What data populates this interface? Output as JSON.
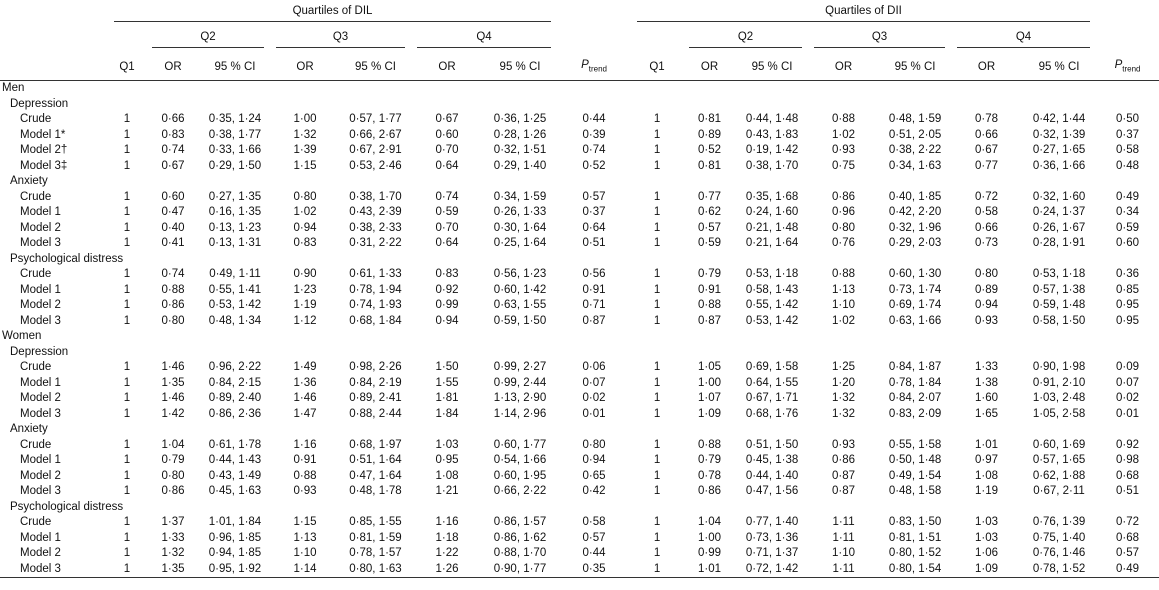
{
  "table": {
    "groups": [
      {
        "title": "Quartiles of DIL",
        "quartiles": [
          "Q2",
          "Q3",
          "Q4"
        ],
        "columns": [
          "Q1",
          "OR",
          "95 % CI",
          "OR",
          "95 % CI",
          "OR",
          "95 % CI"
        ],
        "p_symbol": "P",
        "p_subscript": "trend"
      },
      {
        "title": "Quartiles of DII",
        "quartiles": [
          "Q2",
          "Q3",
          "Q4"
        ],
        "columns": [
          "Q1",
          "OR",
          "95 % CI",
          "OR",
          "95 % CI",
          "OR",
          "95 % CI"
        ],
        "p_symbol": "P",
        "p_subscript": "trend"
      }
    ],
    "sections": [
      {
        "label": "Men",
        "subsections": [
          {
            "label": "Depression",
            "rows": [
              {
                "label": "Crude",
                "cells": [
                  "1",
                  "0·66",
                  "0·35, 1·24",
                  "1·00",
                  "0·57, 1·77",
                  "0·67",
                  "0·36, 1·25",
                  "0·44",
                  "1",
                  "0·81",
                  "0·44, 1·48",
                  "0·88",
                  "0·48, 1·59",
                  "0·78",
                  "0·42, 1·44",
                  "0·50"
                ]
              },
              {
                "label": "Model 1*",
                "cells": [
                  "1",
                  "0·83",
                  "0·38, 1·77",
                  "1·32",
                  "0·66, 2·67",
                  "0·60",
                  "0·28, 1·26",
                  "0·39",
                  "1",
                  "0·89",
                  "0·43, 1·83",
                  "1·02",
                  "0·51, 2·05",
                  "0·66",
                  "0·32, 1·39",
                  "0·37"
                ]
              },
              {
                "label": "Model 2†",
                "cells": [
                  "1",
                  "0·74",
                  "0·33, 1·66",
                  "1·39",
                  "0·67, 2·91",
                  "0·70",
                  "0·32, 1·51",
                  "0·74",
                  "1",
                  "0·52",
                  "0·19, 1·42",
                  "0·93",
                  "0·38, 2·22",
                  "0·67",
                  "0·27, 1·65",
                  "0·58"
                ]
              },
              {
                "label": "Model 3‡",
                "cells": [
                  "1",
                  "0·67",
                  "0·29, 1·50",
                  "1·15",
                  "0·53, 2·46",
                  "0·64",
                  "0·29, 1·40",
                  "0·52",
                  "1",
                  "0·81",
                  "0·38, 1·70",
                  "0·75",
                  "0·34, 1·63",
                  "0·77",
                  "0·36, 1·66",
                  "0·48"
                ]
              }
            ]
          },
          {
            "label": "Anxiety",
            "rows": [
              {
                "label": "Crude",
                "cells": [
                  "1",
                  "0·60",
                  "0·27, 1·35",
                  "0·80",
                  "0·38, 1·70",
                  "0·74",
                  "0·34, 1·59",
                  "0·57",
                  "1",
                  "0·77",
                  "0·35, 1·68",
                  "0·86",
                  "0·40, 1·85",
                  "0·72",
                  "0·32, 1·60",
                  "0·49"
                ]
              },
              {
                "label": "Model 1",
                "cells": [
                  "1",
                  "0·47",
                  "0·16, 1·35",
                  "1·02",
                  "0·43, 2·39",
                  "0·59",
                  "0·26, 1·33",
                  "0·37",
                  "1",
                  "0·62",
                  "0·24, 1·60",
                  "0·96",
                  "0·42, 2·20",
                  "0·58",
                  "0·24, 1·37",
                  "0·34"
                ]
              },
              {
                "label": "Model 2",
                "cells": [
                  "1",
                  "0·40",
                  "0·13, 1·23",
                  "0·94",
                  "0·38, 2·33",
                  "0·70",
                  "0·30, 1·64",
                  "0·64",
                  "1",
                  "0·57",
                  "0·21, 1·48",
                  "0·80",
                  "0·32, 1·96",
                  "0·66",
                  "0·26, 1·67",
                  "0·59"
                ]
              },
              {
                "label": "Model 3",
                "cells": [
                  "1",
                  "0·41",
                  "0·13, 1·31",
                  "0·83",
                  "0·31, 2·22",
                  "0·64",
                  "0·25, 1·64",
                  "0·51",
                  "1",
                  "0·59",
                  "0·21, 1·64",
                  "0·76",
                  "0·29, 2·03",
                  "0·73",
                  "0·28, 1·91",
                  "0·60"
                ]
              }
            ]
          },
          {
            "label": "Psychological distress",
            "rows": [
              {
                "label": "Crude",
                "cells": [
                  "1",
                  "0·74",
                  "0·49, 1·11",
                  "0·90",
                  "0·61, 1·33",
                  "0·83",
                  "0·56, 1·23",
                  "0·56",
                  "1",
                  "0·79",
                  "0·53, 1·18",
                  "0·88",
                  "0·60, 1·30",
                  "0·80",
                  "0·53, 1·18",
                  "0·36"
                ]
              },
              {
                "label": "Model 1",
                "cells": [
                  "1",
                  "0·88",
                  "0·55, 1·41",
                  "1·23",
                  "0·78, 1·94",
                  "0·92",
                  "0·60, 1·42",
                  "0·91",
                  "1",
                  "0·91",
                  "0·58, 1·43",
                  "1·13",
                  "0·73, 1·74",
                  "0·89",
                  "0·57, 1·38",
                  "0·85"
                ]
              },
              {
                "label": "Model 2",
                "cells": [
                  "1",
                  "0·86",
                  "0·53, 1·42",
                  "1·19",
                  "0·74, 1·93",
                  "0·99",
                  "0·63, 1·55",
                  "0·71",
                  "1",
                  "0·88",
                  "0·55, 1·42",
                  "1·10",
                  "0·69, 1·74",
                  "0·94",
                  "0·59, 1·48",
                  "0·95"
                ]
              },
              {
                "label": "Model 3",
                "cells": [
                  "1",
                  "0·80",
                  "0·48, 1·34",
                  "1·12",
                  "0·68, 1·84",
                  "0·94",
                  "0·59, 1·50",
                  "0·87",
                  "1",
                  "0·87",
                  "0·53, 1·42",
                  "1·02",
                  "0·63, 1·66",
                  "0·93",
                  "0·58, 1·50",
                  "0·95"
                ]
              }
            ]
          }
        ]
      },
      {
        "label": "Women",
        "subsections": [
          {
            "label": "Depression",
            "rows": [
              {
                "label": "Crude",
                "cells": [
                  "1",
                  "1·46",
                  "0·96, 2·22",
                  "1·49",
                  "0·98, 2·26",
                  "1·50",
                  "0·99, 2·27",
                  "0·06",
                  "1",
                  "1·05",
                  "0·69, 1·58",
                  "1·25",
                  "0·84, 1·87",
                  "1·33",
                  "0·90, 1·98",
                  "0·09"
                ]
              },
              {
                "label": "Model 1",
                "cells": [
                  "1",
                  "1·35",
                  "0·84, 2·15",
                  "1·36",
                  "0·84, 2·19",
                  "1·55",
                  "0·99, 2·44",
                  "0·07",
                  "1",
                  "1·00",
                  "0·64, 1·55",
                  "1·20",
                  "0·78, 1·84",
                  "1·38",
                  "0·91, 2·10",
                  "0·07"
                ]
              },
              {
                "label": "Model 2",
                "cells": [
                  "1",
                  "1·46",
                  "0·89, 2·40",
                  "1·46",
                  "0·89, 2·41",
                  "1·81",
                  "1·13, 2·90",
                  "0·02",
                  "1",
                  "1·07",
                  "0·67, 1·71",
                  "1·32",
                  "0·84, 2·07",
                  "1·60",
                  "1·03, 2·48",
                  "0·02"
                ]
              },
              {
                "label": "Model 3",
                "cells": [
                  "1",
                  "1·42",
                  "0·86, 2·36",
                  "1·47",
                  "0·88, 2·44",
                  "1·84",
                  "1·14, 2·96",
                  "0·01",
                  "1",
                  "1·09",
                  "0·68, 1·76",
                  "1·32",
                  "0·83, 2·09",
                  "1·65",
                  "1·05, 2·58",
                  "0·01"
                ]
              }
            ]
          },
          {
            "label": "Anxiety",
            "rows": [
              {
                "label": "Crude",
                "cells": [
                  "1",
                  "1·04",
                  "0·61, 1·78",
                  "1·16",
                  "0·68, 1·97",
                  "1·03",
                  "0·60, 1·77",
                  "0·80",
                  "1",
                  "0·88",
                  "0·51, 1·50",
                  "0·93",
                  "0·55, 1·58",
                  "1·01",
                  "0·60, 1·69",
                  "0·92"
                ]
              },
              {
                "label": "Model 1",
                "cells": [
                  "1",
                  "0·79",
                  "0·44, 1·43",
                  "0·91",
                  "0·51, 1·64",
                  "0·95",
                  "0·54, 1·66",
                  "0·94",
                  "1",
                  "0·79",
                  "0·45, 1·38",
                  "0·86",
                  "0·50, 1·48",
                  "0·97",
                  "0·57, 1·65",
                  "0·98"
                ]
              },
              {
                "label": "Model 2",
                "cells": [
                  "1",
                  "0·80",
                  "0·43, 1·49",
                  "0·88",
                  "0·47, 1·64",
                  "1·08",
                  "0·60, 1·95",
                  "0·65",
                  "1",
                  "0·78",
                  "0·44, 1·40",
                  "0·87",
                  "0·49, 1·54",
                  "1·08",
                  "0·62, 1·88",
                  "0·68"
                ]
              },
              {
                "label": "Model 3",
                "cells": [
                  "1",
                  "0·86",
                  "0·45, 1·63",
                  "0·93",
                  "0·48, 1·78",
                  "1·21",
                  "0·66, 2·22",
                  "0·42",
                  "1",
                  "0·86",
                  "0·47, 1·56",
                  "0·87",
                  "0·48, 1·58",
                  "1·19",
                  "0·67, 2·11",
                  "0·51"
                ]
              }
            ]
          },
          {
            "label": "Psychological distress",
            "rows": [
              {
                "label": "Crude",
                "cells": [
                  "1",
                  "1·37",
                  "1·01, 1·84",
                  "1·15",
                  "0·85, 1·55",
                  "1·16",
                  "0·86, 1·57",
                  "0·58",
                  "1",
                  "1·04",
                  "0·77, 1·40",
                  "1·11",
                  "0·83, 1·50",
                  "1·03",
                  "0·76, 1·39",
                  "0·72"
                ]
              },
              {
                "label": "Model 1",
                "cells": [
                  "1",
                  "1·33",
                  "0·96, 1·85",
                  "1·13",
                  "0·81, 1·59",
                  "1·18",
                  "0·86, 1·62",
                  "0·57",
                  "1",
                  "1·00",
                  "0·73, 1·36",
                  "1·11",
                  "0·81, 1·51",
                  "1·03",
                  "0·75, 1·40",
                  "0·68"
                ]
              },
              {
                "label": "Model 2",
                "cells": [
                  "1",
                  "1·32",
                  "0·94, 1·85",
                  "1·10",
                  "0·78, 1·57",
                  "1·22",
                  "0·88, 1·70",
                  "0·44",
                  "1",
                  "0·99",
                  "0·71, 1·37",
                  "1·10",
                  "0·80, 1·52",
                  "1·06",
                  "0·76, 1·46",
                  "0·57"
                ]
              },
              {
                "label": "Model 3",
                "cells": [
                  "1",
                  "1·35",
                  "0·95, 1·92",
                  "1·14",
                  "0·80, 1·63",
                  "1·26",
                  "0·90, 1·77",
                  "0·35",
                  "1",
                  "1·01",
                  "0·72, 1·42",
                  "1·11",
                  "0·80, 1·54",
                  "1·09",
                  "0·78, 1·52",
                  "0·49"
                ]
              }
            ]
          }
        ]
      }
    ]
  }
}
